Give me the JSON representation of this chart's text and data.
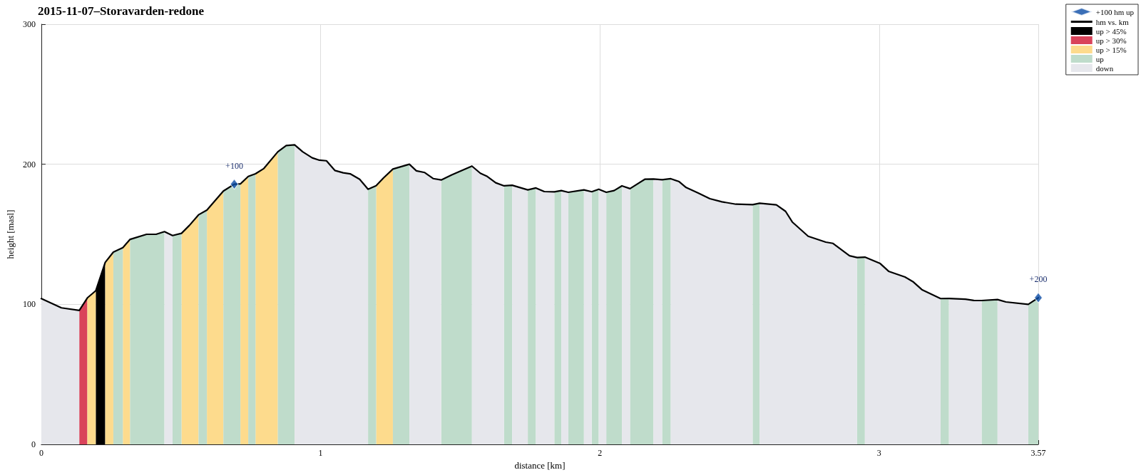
{
  "chart_data": {
    "type": "area",
    "title": "2015-11-07–Storavarden-redone",
    "xlabel": "distance [km]",
    "ylabel": "height [masl]",
    "xlim": [
      0,
      3.57
    ],
    "xticks": [
      0,
      1,
      2,
      3,
      3.57
    ],
    "ylim": [
      0,
      300
    ],
    "yticks": [
      0,
      100,
      200,
      300
    ],
    "grid": true,
    "legend": "top right",
    "marker": "none",
    "annotations": [
      {
        "text": "+100",
        "x": 0.691,
        "y": 185.8
      },
      {
        "text": "+200",
        "x": 3.57,
        "y": 104.7
      }
    ],
    "series": [
      {
        "name": "+100 hm up",
        "type": "scatter",
        "marker": "diamond",
        "color": "#0a4ba5",
        "x": [
          0.691,
          3.57
        ],
        "values": [
          185.8,
          104.7
        ]
      },
      {
        "name": "hm vs. km",
        "type": "line",
        "color": "#000000",
        "x": [
          0,
          0.072,
          0.136,
          0.165,
          0.195,
          0.229,
          0.258,
          0.292,
          0.318,
          0.377,
          0.411,
          0.441,
          0.47,
          0.502,
          0.53,
          0.563,
          0.593,
          0.652,
          0.691,
          0.713,
          0.741,
          0.767,
          0.797,
          0.847,
          0.877,
          0.907,
          0.936,
          0.97,
          0.996,
          1.021,
          1.051,
          1.081,
          1.106,
          1.14,
          1.17,
          1.199,
          1.225,
          1.259,
          1.318,
          1.343,
          1.373,
          1.403,
          1.432,
          1.47,
          1.542,
          1.572,
          1.597,
          1.627,
          1.657,
          1.686,
          1.742,
          1.771,
          1.801,
          1.837,
          1.862,
          1.887,
          1.943,
          1.971,
          1.996,
          2.023,
          2.051,
          2.079,
          2.108,
          2.161,
          2.192,
          2.223,
          2.254,
          2.284,
          2.309,
          2.352,
          2.394,
          2.437,
          2.487,
          2.547,
          2.572,
          2.632,
          2.665,
          2.689,
          2.746,
          2.809,
          2.835,
          2.894,
          2.921,
          2.949,
          3.004,
          3.034,
          3.093,
          3.123,
          3.153,
          3.22,
          3.25,
          3.309,
          3.339,
          3.367,
          3.424,
          3.454,
          3.534,
          3.57
        ],
        "values": [
          104.1,
          97.5,
          95.7,
          104.6,
          109.7,
          130,
          137.3,
          140.5,
          146.4,
          150,
          150,
          151.9,
          149.1,
          150.7,
          156.3,
          163.9,
          167.3,
          180.9,
          185.8,
          186,
          191.3,
          193.2,
          197,
          208.9,
          213.4,
          213.9,
          208.9,
          204.6,
          202.9,
          202.5,
          195.6,
          193.9,
          193.2,
          189.3,
          182.2,
          184.7,
          190.2,
          196.6,
          200,
          195.3,
          194.1,
          189.8,
          188.8,
          192.4,
          198.7,
          193.6,
          191.3,
          186.8,
          184.6,
          185,
          181.7,
          183.1,
          180.5,
          180.3,
          181.2,
          180,
          181.7,
          180.4,
          182.2,
          180,
          181.2,
          184.6,
          182.6,
          189.3,
          189.5,
          189,
          189.7,
          187.6,
          183.4,
          179.5,
          175.4,
          173.2,
          171.5,
          171.2,
          172.2,
          171,
          166.4,
          158.8,
          148.6,
          144.4,
          143.5,
          134.7,
          133.4,
          133.7,
          129.1,
          123.6,
          119.5,
          115.9,
          110.5,
          104.1,
          104.2,
          103.7,
          102.8,
          102.7,
          103.4,
          101.7,
          100,
          104.7
        ]
      },
      {
        "name": "up > 45%",
        "color": "#000000",
        "x": [
          0.195,
          0.229
        ],
        "values": [
          109.7,
          130
        ]
      },
      {
        "name": "up > 30%",
        "color": "#d9435a",
        "x": [
          0.136,
          0.165
        ],
        "values": [
          95.7,
          104.6
        ]
      },
      {
        "name": "up > 15%",
        "color": "#fddb8d",
        "x": [
          0.165,
          0.195
        ],
        "values": [
          104.6,
          109.7
        ]
      },
      {
        "color": "#fddb8d",
        "x": [
          0.229,
          0.258
        ],
        "values": [
          130,
          137.3
        ]
      },
      {
        "color": "#fddb8d",
        "x": [
          0.292,
          0.318
        ],
        "values": [
          140.5,
          146.4
        ]
      },
      {
        "color": "#fddb8d",
        "x": [
          0.502,
          0.53,
          0.563
        ],
        "values": [
          150.7,
          156.3,
          163.9
        ]
      },
      {
        "color": "#fddb8d",
        "x": [
          0.593,
          0.652
        ],
        "values": [
          167.3,
          180.9
        ]
      },
      {
        "color": "#fddb8d",
        "x": [
          0.713,
          0.741
        ],
        "values": [
          186,
          191.3
        ]
      },
      {
        "color": "#fddb8d",
        "x": [
          0.767,
          0.797,
          0.847
        ],
        "values": [
          193.2,
          197,
          208.9
        ]
      },
      {
        "color": "#fddb8d",
        "x": [
          1.199,
          1.225,
          1.259
        ],
        "values": [
          184.7,
          190.2,
          196.6
        ]
      },
      {
        "name": "up",
        "color": "#bfdccb",
        "x": [
          0.258,
          0.292
        ],
        "values": [
          137.3,
          140.5
        ]
      },
      {
        "color": "#bfdccb",
        "x": [
          0.318,
          0.377,
          0.411,
          0.441
        ],
        "values": [
          146.4,
          150,
          150,
          151.9
        ]
      },
      {
        "color": "#bfdccb",
        "x": [
          0.47,
          0.502
        ],
        "values": [
          149.1,
          150.7
        ]
      },
      {
        "color": "#bfdccb",
        "x": [
          0.563,
          0.593
        ],
        "values": [
          163.9,
          167.3
        ]
      },
      {
        "color": "#bfdccb",
        "x": [
          0.652,
          0.691,
          0.713
        ],
        "values": [
          180.9,
          185.8,
          186
        ]
      },
      {
        "color": "#bfdccb",
        "x": [
          0.741,
          0.767
        ],
        "values": [
          191.3,
          193.2
        ]
      },
      {
        "color": "#bfdccb",
        "x": [
          0.847,
          0.877,
          0.907
        ],
        "values": [
          208.9,
          213.4,
          213.9
        ]
      },
      {
        "color": "#bfdccb",
        "x": [
          1.17,
          1.199
        ],
        "values": [
          182.2,
          184.7
        ]
      },
      {
        "color": "#bfdccb",
        "x": [
          1.259,
          1.318
        ],
        "values": [
          196.6,
          200
        ]
      },
      {
        "color": "#bfdccb",
        "x": [
          1.432,
          1.47,
          1.542
        ],
        "values": [
          188.8,
          192.4,
          198.7
        ]
      },
      {
        "color": "#bfdccb",
        "x": [
          1.657,
          1.686
        ],
        "values": [
          184.6,
          185
        ]
      },
      {
        "color": "#bfdccb",
        "x": [
          1.742,
          1.771
        ],
        "values": [
          181.7,
          183.1
        ]
      },
      {
        "color": "#bfdccb",
        "x": [
          1.837,
          1.862
        ],
        "values": [
          180.3,
          181.2
        ]
      },
      {
        "color": "#bfdccb",
        "x": [
          1.887,
          1.943
        ],
        "values": [
          180,
          181.7
        ]
      },
      {
        "color": "#bfdccb",
        "x": [
          1.971,
          1.996
        ],
        "values": [
          180.4,
          182.2
        ]
      },
      {
        "color": "#bfdccb",
        "x": [
          2.023,
          2.051,
          2.079
        ],
        "values": [
          180,
          181.2,
          184.6
        ]
      },
      {
        "color": "#bfdccb",
        "x": [
          2.108,
          2.161,
          2.192
        ],
        "values": [
          182.6,
          189.3,
          189.5
        ]
      },
      {
        "color": "#bfdccb",
        "x": [
          2.223,
          2.254
        ],
        "values": [
          189,
          189.7
        ]
      },
      {
        "color": "#bfdccb",
        "x": [
          2.547,
          2.572
        ],
        "values": [
          171.2,
          172.2
        ]
      },
      {
        "color": "#bfdccb",
        "x": [
          2.921,
          2.949
        ],
        "values": [
          133.4,
          133.7
        ]
      },
      {
        "color": "#bfdccb",
        "x": [
          3.22,
          3.25
        ],
        "values": [
          104.1,
          104.2
        ]
      },
      {
        "color": "#bfdccb",
        "x": [
          3.367,
          3.424
        ],
        "values": [
          102.7,
          103.4
        ]
      },
      {
        "color": "#bfdccb",
        "x": [
          3.534,
          3.57
        ],
        "values": [
          100,
          104.7
        ]
      },
      {
        "name": "down",
        "color": "#e6e7ec",
        "x": [
          0,
          0.072,
          0.136
        ],
        "values": [
          104.1,
          97.5,
          95.7
        ]
      },
      {
        "color": "#e6e7ec",
        "x": [
          0.441,
          0.47
        ],
        "values": [
          151.9,
          149.1
        ]
      },
      {
        "color": "#e6e7ec",
        "x": [
          0.907,
          0.936,
          0.97,
          0.996,
          1.021,
          1.051,
          1.081,
          1.106,
          1.14,
          1.17
        ],
        "values": [
          213.9,
          208.9,
          204.6,
          202.9,
          202.5,
          195.6,
          193.9,
          193.2,
          189.3,
          182.2
        ]
      },
      {
        "color": "#e6e7ec",
        "x": [
          1.318,
          1.343,
          1.373,
          1.403,
          1.432
        ],
        "values": [
          200,
          195.3,
          194.1,
          189.8,
          188.8
        ]
      },
      {
        "color": "#e6e7ec",
        "x": [
          1.542,
          1.572,
          1.597,
          1.627,
          1.657
        ],
        "values": [
          198.7,
          193.6,
          191.3,
          186.8,
          184.6
        ]
      },
      {
        "color": "#e6e7ec",
        "x": [
          1.686,
          1.742
        ],
        "values": [
          185,
          181.7
        ]
      },
      {
        "color": "#e6e7ec",
        "x": [
          1.771,
          1.801,
          1.837
        ],
        "values": [
          183.1,
          180.5,
          180.3
        ]
      },
      {
        "color": "#e6e7ec",
        "x": [
          1.862,
          1.887
        ],
        "values": [
          181.2,
          180
        ]
      },
      {
        "color": "#e6e7ec",
        "x": [
          1.943,
          1.971
        ],
        "values": [
          181.7,
          180.4
        ]
      },
      {
        "color": "#e6e7ec",
        "x": [
          1.996,
          2.023
        ],
        "values": [
          182.2,
          180
        ]
      },
      {
        "color": "#e6e7ec",
        "x": [
          2.079,
          2.108
        ],
        "values": [
          184.6,
          182.6
        ]
      },
      {
        "color": "#e6e7ec",
        "x": [
          2.192,
          2.223
        ],
        "values": [
          189.5,
          189
        ]
      },
      {
        "color": "#e6e7ec",
        "x": [
          2.254,
          2.284,
          2.309,
          2.352,
          2.394,
          2.437,
          2.487,
          2.547
        ],
        "values": [
          189.7,
          187.6,
          183.4,
          179.5,
          175.4,
          173.2,
          171.5,
          171.2
        ]
      },
      {
        "color": "#e6e7ec",
        "x": [
          2.572,
          2.632,
          2.665,
          2.689,
          2.746,
          2.809,
          2.835,
          2.894,
          2.921
        ],
        "values": [
          172.2,
          171,
          166.4,
          158.8,
          148.6,
          144.4,
          143.5,
          134.7,
          133.4
        ]
      },
      {
        "color": "#e6e7ec",
        "x": [
          2.949,
          3.004,
          3.034,
          3.093,
          3.123,
          3.153,
          3.22
        ],
        "values": [
          133.7,
          129.1,
          123.6,
          119.5,
          115.9,
          110.5,
          104.1
        ]
      },
      {
        "color": "#e6e7ec",
        "x": [
          3.25,
          3.309,
          3.339,
          3.367
        ],
        "values": [
          104.2,
          103.7,
          102.8,
          102.7
        ]
      },
      {
        "color": "#e6e7ec",
        "x": [
          3.424,
          3.454,
          3.534
        ],
        "values": [
          103.4,
          101.7,
          100
        ]
      }
    ]
  }
}
